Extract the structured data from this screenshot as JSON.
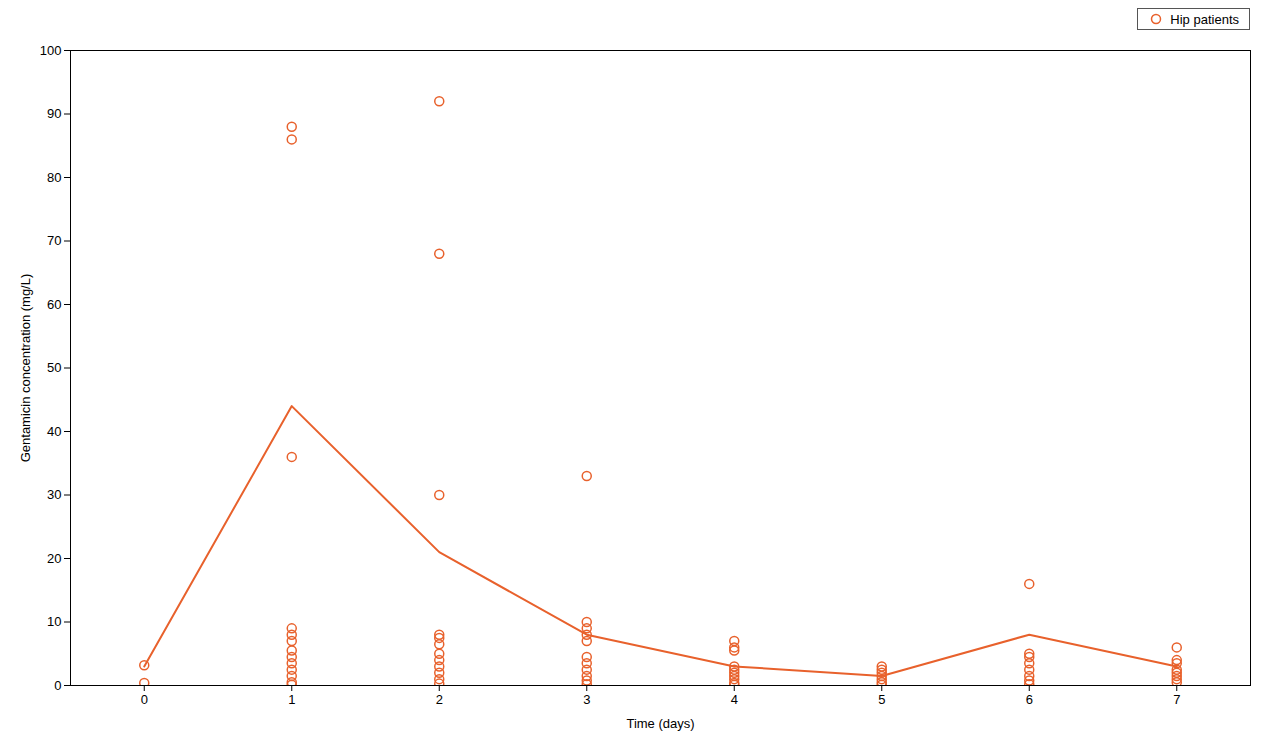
{
  "chart_data": {
    "type": "scatter",
    "xlabel": "Time (days)",
    "ylabel": "Gentamicin concentration (mg/L)",
    "xlim": [
      -0.5,
      7.5
    ],
    "xticks": [
      0,
      1,
      2,
      3,
      4,
      5,
      6,
      7
    ],
    "ylim": [
      0,
      100
    ],
    "yticks": [
      0,
      10,
      20,
      30,
      40,
      50,
      60,
      70,
      80,
      90,
      100
    ],
    "grid": false,
    "legend": "upper right",
    "series": [
      {
        "name": "Hip patients",
        "type": "scatter",
        "marker": "circle",
        "color": "#E8612C",
        "x": [
          0,
          0,
          1,
          1,
          1,
          1,
          1,
          1,
          1,
          1,
          1,
          1,
          1,
          1,
          1,
          2,
          2,
          2,
          2,
          2,
          2,
          2,
          2,
          2,
          2,
          2,
          2,
          3,
          3,
          3,
          3,
          3,
          3,
          3,
          3,
          3,
          3,
          3,
          4,
          4,
          4,
          4,
          4,
          4,
          4,
          4,
          4,
          4,
          5,
          5,
          5,
          5,
          5,
          5,
          5,
          6,
          6,
          6,
          6,
          6,
          6,
          6,
          6,
          7,
          7,
          7,
          7,
          7,
          7,
          7,
          7
        ],
        "values": [
          3.2,
          0.4,
          88.0,
          86.0,
          36.0,
          9.0,
          8.0,
          7.0,
          5.5,
          4.5,
          3.5,
          2.5,
          1.5,
          0.5,
          0.1,
          92.0,
          68.0,
          30.0,
          8.0,
          7.5,
          6.5,
          5.0,
          4.0,
          3.0,
          2.0,
          1.0,
          0.3,
          33.0,
          10.0,
          9.0,
          8.0,
          7.0,
          4.5,
          3.5,
          2.5,
          1.5,
          0.8,
          0.2,
          7.0,
          6.0,
          5.5,
          3.0,
          2.5,
          2.0,
          1.5,
          1.0,
          0.4,
          0.1,
          3.0,
          2.5,
          2.0,
          1.5,
          1.0,
          0.5,
          0.1,
          16.0,
          5.0,
          4.5,
          3.5,
          2.5,
          1.5,
          0.8,
          0.2,
          6.0,
          4.0,
          3.5,
          2.5,
          2.0,
          1.5,
          1.0,
          0.5
        ]
      },
      {
        "type": "line",
        "line_style": "solid",
        "color": "#E8612C",
        "x": [
          0,
          1,
          2,
          3,
          4,
          5,
          6,
          7
        ],
        "values": [
          3.0,
          44.0,
          21.0,
          8.0,
          3.0,
          1.5,
          8.0,
          3.0
        ]
      }
    ]
  }
}
